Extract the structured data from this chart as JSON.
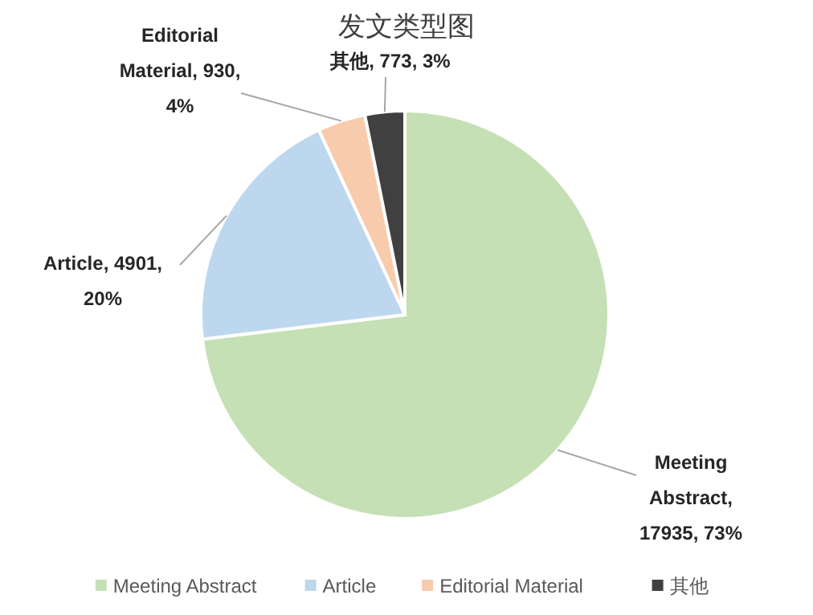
{
  "chart_data": {
    "type": "pie",
    "title": "发文类型图",
    "categories": [
      "Meeting Abstract",
      "Article",
      "Editorial Material",
      "其他"
    ],
    "values": [
      17935,
      4901,
      930,
      773
    ],
    "value_labels": [
      "Meeting Abstract, 17935, 73%",
      "Article, 4901, 20%",
      "Editorial Material, 930, 4%",
      "其他, 773, 3%"
    ],
    "colors": [
      "#c5e0b4",
      "#bdd7ee",
      "#f8cbad",
      "#404040"
    ],
    "legend": "bottom"
  }
}
